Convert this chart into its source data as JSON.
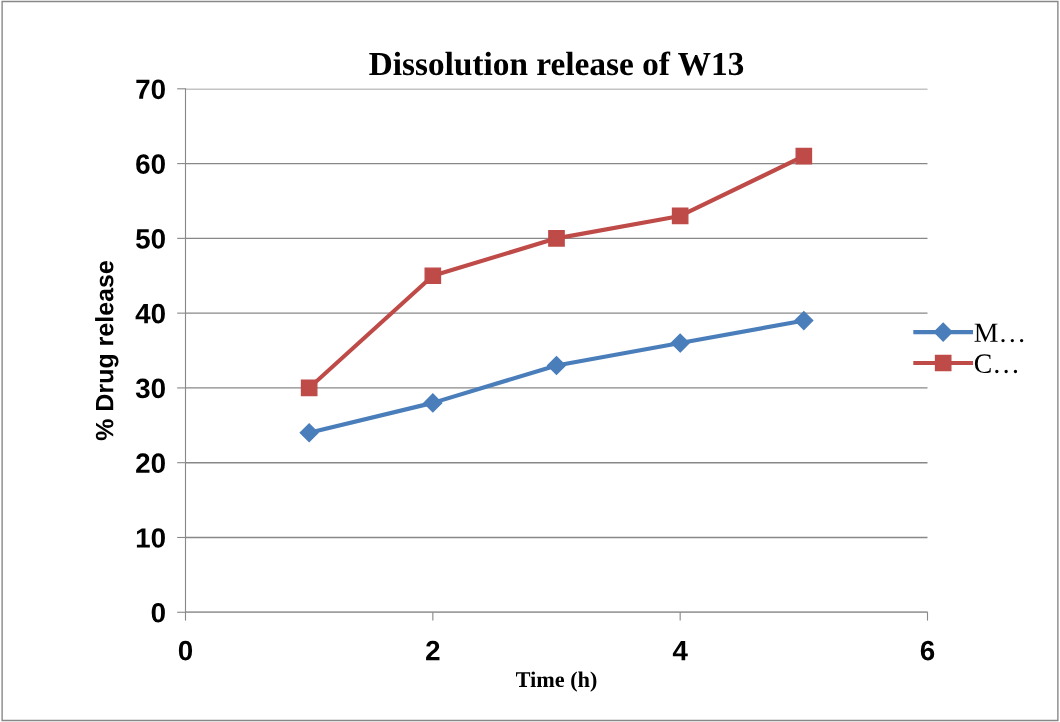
{
  "chart_data": {
    "type": "line",
    "title": "Dissolution release of W13",
    "xlabel": "Time (h)",
    "ylabel": "% Drug release",
    "x": [
      1,
      2,
      3,
      4,
      5
    ],
    "series": [
      {
        "name": "M…",
        "color": "#4a7ebb",
        "marker": "diamond",
        "values": [
          24,
          28,
          33,
          36,
          39
        ]
      },
      {
        "name": "C…",
        "color": "#be4b48",
        "marker": "square",
        "values": [
          30,
          45,
          50,
          53,
          61
        ]
      }
    ],
    "xlim": [
      0,
      6
    ],
    "xticks": [
      0,
      2,
      4,
      6
    ],
    "ylim": [
      0,
      70
    ],
    "yticks": [
      0,
      10,
      20,
      30,
      40,
      50,
      60,
      70
    ],
    "grid": "y",
    "legend": "right",
    "line_style": "solid"
  }
}
